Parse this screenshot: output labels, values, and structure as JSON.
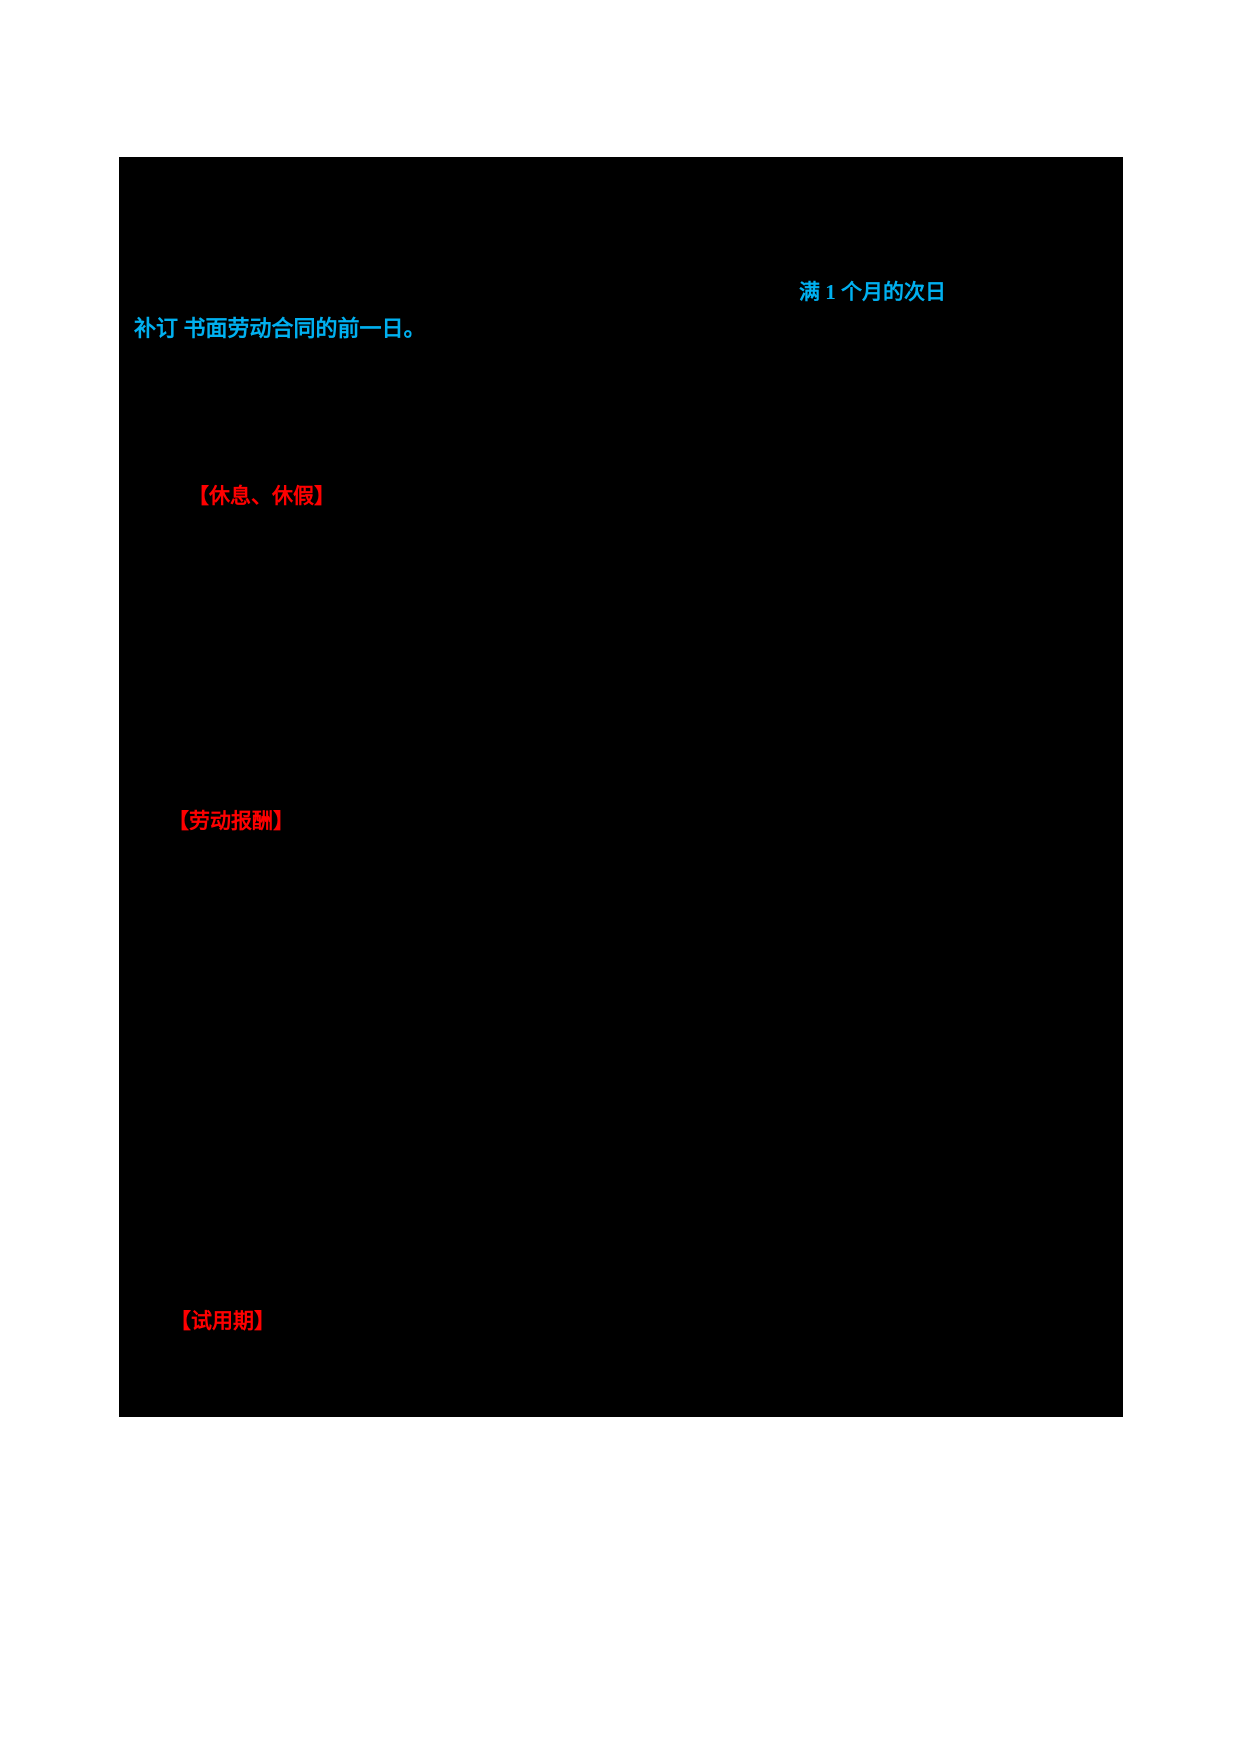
{
  "page": {
    "background_color": "#FFFFFF",
    "content_block_color": "#000000"
  },
  "colors": {
    "highlight_blue": "#00B0F0",
    "heading_red": "#FF0000"
  },
  "fragments": {
    "answer_line_1": "满 1 个月的次日",
    "answer_line_2": "补订 书面劳动合同的前一日。",
    "heading_rest_leave": "【休息、休假】",
    "heading_labor_pay": "【劳动报酬】",
    "heading_probation": "【试用期】"
  }
}
